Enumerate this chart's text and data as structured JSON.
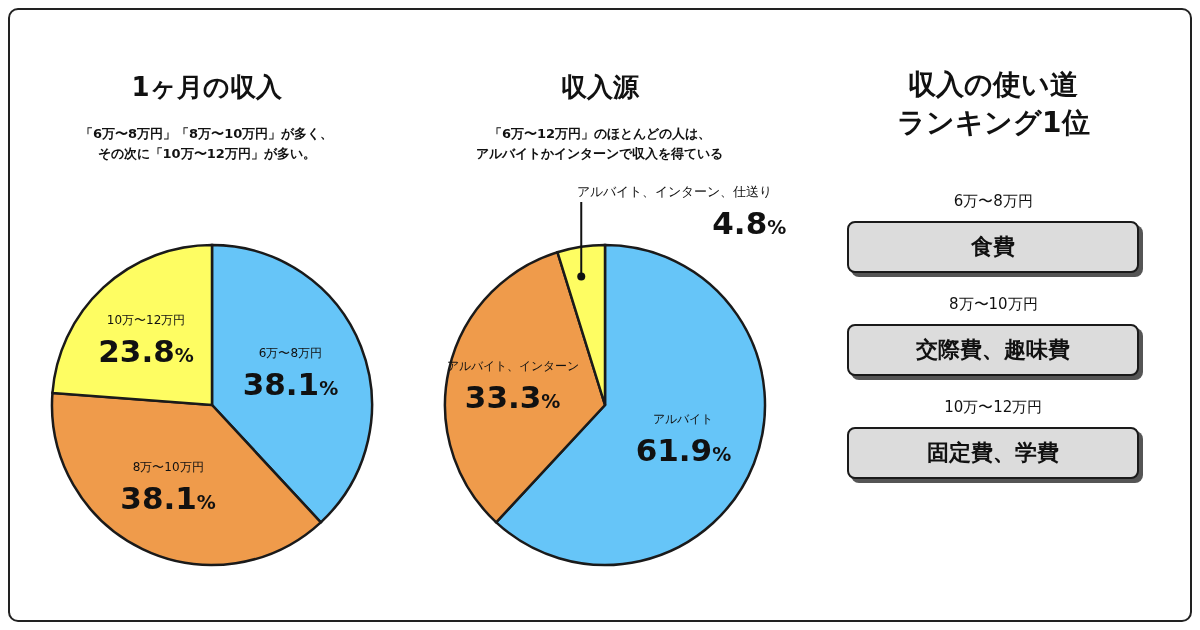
{
  "chart_data": [
    {
      "type": "pie",
      "title": "1ヶ月の収入",
      "subtitle": "「6万〜8万円」「8万〜10万円」が多く、その次に「10万〜12万円」が多い。",
      "categories": [
        "6万〜8万円",
        "8万〜10万円",
        "10万〜12万円"
      ],
      "values": [
        38.1,
        38.1,
        23.8
      ],
      "colors": [
        "#66c5f8",
        "#ef9b4b",
        "#fefd62"
      ],
      "value_labels": [
        "38.1%",
        "38.1%",
        "23.8%"
      ]
    },
    {
      "type": "pie",
      "title": "収入源",
      "subtitle": "「6万〜12万円」のほとんどの人は、アルバイトかインターンで収入を得ている",
      "categories": [
        "アルバイト",
        "アルバイト、インターン",
        "アルバイト、インターン、仕送り"
      ],
      "values": [
        61.9,
        33.3,
        4.8
      ],
      "colors": [
        "#66c5f8",
        "#ef9b4b",
        "#fefd62"
      ],
      "value_labels": [
        "61.9%",
        "33.3%",
        "4.8%"
      ]
    },
    {
      "type": "other",
      "title": "収入の使い道ランキング1位",
      "annotations": [
        "6万〜8万円",
        "食費",
        "8万〜10万円",
        "交際費、趣味費",
        "10万〜12万円",
        "固定費、学費"
      ]
    }
  ]
}
